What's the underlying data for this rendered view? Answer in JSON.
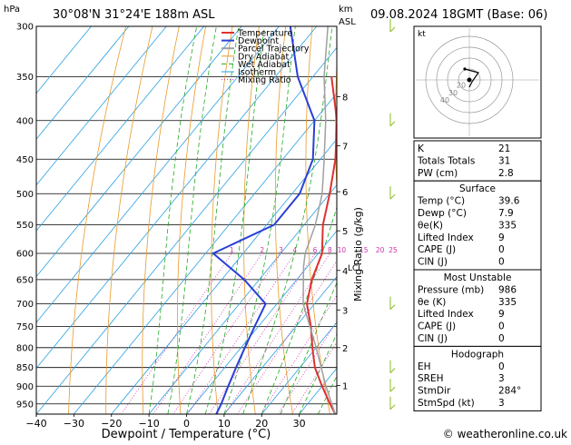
{
  "header": {
    "station": "30°08'N  31°24'E  188m  ASL",
    "date": "09.08.2024  18GMT  (Base: 06)",
    "hpa_unit": "hPa",
    "km_unit": "km",
    "asl_unit": "ASL"
  },
  "chart_data": {
    "type": "line",
    "title": "",
    "xlabel": "Dewpoint / Temperature (°C)",
    "ylabel": "hPa",
    "right_label": "Mixing Ratio (g/kg)",
    "xlim": [
      -40,
      40
    ],
    "ylim_hpa": [
      300,
      980
    ],
    "pressure_ticks": [
      300,
      350,
      400,
      450,
      500,
      550,
      600,
      650,
      700,
      750,
      800,
      850,
      900,
      950
    ],
    "temp_ticks": [
      -40,
      -30,
      -20,
      -10,
      0,
      10,
      20,
      30
    ],
    "km_ticks": [
      {
        "label": "8",
        "p": 372
      },
      {
        "label": "7",
        "p": 432
      },
      {
        "label": "6",
        "p": 497
      },
      {
        "label": "5",
        "p": 560
      },
      {
        "label": "4",
        "p": 632
      },
      {
        "label": "3",
        "p": 713
      },
      {
        "label": "2",
        "p": 800
      },
      {
        "label": "1",
        "p": 898
      }
    ],
    "lcl": {
      "label": "LCL",
      "p": 625
    },
    "mixing_ratio_labels": [
      "1",
      "2",
      "3",
      "4",
      "6",
      "8",
      "10",
      "15",
      "20",
      "25"
    ],
    "mixing_ratio_values": [
      1,
      2,
      3,
      4,
      6,
      8,
      10,
      15,
      20,
      25
    ],
    "legend": [
      "Temperature",
      "Dewpoint",
      "Parcel Trajectory",
      "Dry Adiabat",
      "Wet Adiabat",
      "Isotherm",
      "Mixing Ratio"
    ],
    "legend_position": "top-left",
    "colors": {
      "temperature": "#e03030",
      "dewpoint": "#2a3fd6",
      "parcel": "#a0a0a0",
      "dry_adiabat": "#e89a2a",
      "wet_adiabat": "#22aa22",
      "isotherm": "#2aa0e6",
      "mixing_ratio": "#cc33aa",
      "wind": "#88bb22"
    },
    "series": [
      {
        "name": "Temperature",
        "points": [
          [
            980,
            39.6
          ],
          [
            950,
            36
          ],
          [
            900,
            30
          ],
          [
            850,
            24
          ],
          [
            800,
            19
          ],
          [
            750,
            14
          ],
          [
            700,
            8
          ],
          [
            650,
            4
          ],
          [
            600,
            1
          ],
          [
            550,
            -5
          ],
          [
            500,
            -10
          ],
          [
            450,
            -16
          ],
          [
            400,
            -24
          ],
          [
            350,
            -35
          ]
        ]
      },
      {
        "name": "Dewpoint",
        "points": [
          [
            980,
            7.9
          ],
          [
            950,
            7
          ],
          [
            900,
            5
          ],
          [
            850,
            3
          ],
          [
            800,
            1
          ],
          [
            750,
            -1
          ],
          [
            700,
            -3
          ],
          [
            650,
            -14
          ],
          [
            600,
            -28
          ],
          [
            550,
            -18
          ],
          [
            500,
            -18
          ],
          [
            450,
            -22
          ],
          [
            400,
            -30
          ],
          [
            350,
            -44
          ],
          [
            300,
            -57
          ]
        ]
      },
      {
        "name": "Parcel Trajectory",
        "points": [
          [
            980,
            39.6
          ],
          [
            900,
            31
          ],
          [
            800,
            20
          ],
          [
            700,
            7
          ],
          [
            625,
            -1
          ],
          [
            600,
            -3.5
          ],
          [
            550,
            -7
          ],
          [
            500,
            -12
          ],
          [
            450,
            -19
          ],
          [
            400,
            -27
          ],
          [
            350,
            -37
          ],
          [
            300,
            -47
          ]
        ]
      }
    ],
    "wind_barbs_p": [
      300,
      400,
      500,
      700,
      850,
      900,
      950
    ]
  },
  "hodograph": {
    "unit": "kt",
    "ring_labels": [
      "40",
      "30",
      "20"
    ]
  },
  "indices": {
    "top": [
      {
        "label": "K",
        "value": "21"
      },
      {
        "label": "Totals Totals",
        "value": "31"
      },
      {
        "label": "PW (cm)",
        "value": "2.8"
      }
    ],
    "surface": {
      "title": "Surface",
      "rows": [
        {
          "label": "Temp (°C)",
          "value": "39.6"
        },
        {
          "label": "Dewp (°C)",
          "value": "7.9"
        },
        {
          "label": "θe(K)",
          "value": "335"
        },
        {
          "label": "Lifted Index",
          "value": "9"
        },
        {
          "label": "CAPE (J)",
          "value": "0"
        },
        {
          "label": "CIN (J)",
          "value": "0"
        }
      ]
    },
    "most_unstable": {
      "title": "Most Unstable",
      "rows": [
        {
          "label": "Pressure (mb)",
          "value": "986"
        },
        {
          "label": "θe (K)",
          "value": "335"
        },
        {
          "label": "Lifted Index",
          "value": "9"
        },
        {
          "label": "CAPE (J)",
          "value": "0"
        },
        {
          "label": "CIN (J)",
          "value": "0"
        }
      ]
    },
    "hodograph": {
      "title": "Hodograph",
      "rows": [
        {
          "label": "EH",
          "value": "0"
        },
        {
          "label": "SREH",
          "value": "3"
        },
        {
          "label": "StmDir",
          "value": "284°"
        },
        {
          "label": "StmSpd (kt)",
          "value": "3"
        }
      ]
    }
  },
  "footer": {
    "copyright": "© weatheronline.co.uk"
  }
}
